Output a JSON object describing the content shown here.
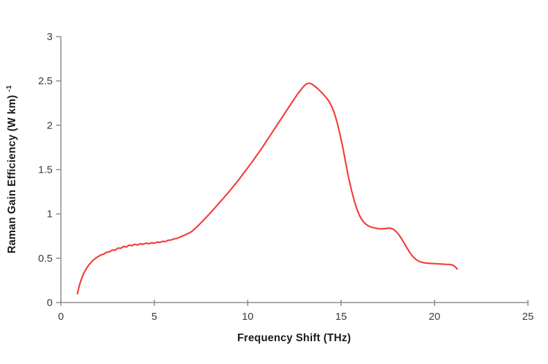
{
  "figure": {
    "background_color": "#ffffff"
  },
  "chart_data": {
    "type": "line",
    "title": "",
    "xlabel": "Frequency Shift (THz)",
    "ylabel": "Raman Gain Efficiency (W km)",
    "ylabel_exponent": "-1",
    "xlim": [
      0,
      25
    ],
    "ylim": [
      0,
      3
    ],
    "xticks": [
      0,
      5,
      10,
      15,
      20,
      25
    ],
    "xtick_labels": [
      "0",
      "5",
      "10",
      "15",
      "20",
      "25"
    ],
    "yticks": [
      0,
      0.5,
      1,
      1.5,
      2,
      2.5,
      3
    ],
    "ytick_labels": [
      "0",
      "0.5",
      "1",
      "1.5",
      "2",
      "2.5",
      "3"
    ],
    "grid": false,
    "legend": "none",
    "line_color": "#f43c36",
    "axis_color": "#8a8a8a",
    "tick_text_color": "#383838",
    "title_text_color": "#1a1a1a",
    "series": [
      {
        "name": "Raman gain efficiency",
        "x": [
          0.88,
          0.95,
          1.0,
          1.1,
          1.2,
          1.3,
          1.4,
          1.5,
          1.6,
          1.7,
          1.8,
          1.9,
          2.0,
          2.15,
          2.3,
          2.45,
          2.6,
          2.75,
          2.9,
          3.05,
          3.2,
          3.35,
          3.5,
          3.65,
          3.8,
          3.95,
          4.1,
          4.25,
          4.4,
          4.55,
          4.7,
          4.85,
          5.0,
          5.15,
          5.3,
          5.45,
          5.6,
          5.75,
          5.9,
          6.05,
          6.2,
          6.35,
          6.5,
          6.75,
          7.0,
          7.25,
          7.5,
          7.75,
          8.0,
          8.25,
          8.5,
          8.75,
          9.0,
          9.25,
          9.5,
          9.75,
          10.0,
          10.25,
          10.5,
          10.75,
          11.0,
          11.25,
          11.5,
          11.75,
          12.0,
          12.25,
          12.5,
          12.75,
          13.0,
          13.15,
          13.3,
          13.45,
          13.6,
          13.75,
          13.9,
          14.05,
          14.2,
          14.35,
          14.5,
          14.65,
          14.8,
          14.95,
          15.1,
          15.25,
          15.4,
          15.55,
          15.7,
          15.85,
          16.0,
          16.15,
          16.3,
          16.45,
          16.6,
          16.75,
          16.9,
          17.05,
          17.2,
          17.35,
          17.5,
          17.65,
          17.8,
          17.95,
          18.1,
          18.25,
          18.4,
          18.55,
          18.7,
          18.85,
          19.0,
          19.15,
          19.3,
          19.45,
          19.6,
          19.8,
          20.0,
          20.2,
          20.4,
          20.6,
          20.8,
          20.95,
          21.05,
          21.15,
          21.22
        ],
        "y": [
          0.1,
          0.16,
          0.2,
          0.265,
          0.32,
          0.36,
          0.395,
          0.425,
          0.45,
          0.472,
          0.49,
          0.506,
          0.52,
          0.538,
          0.547,
          0.568,
          0.571,
          0.592,
          0.59,
          0.614,
          0.612,
          0.632,
          0.627,
          0.647,
          0.641,
          0.657,
          0.649,
          0.662,
          0.657,
          0.67,
          0.662,
          0.674,
          0.669,
          0.682,
          0.678,
          0.69,
          0.688,
          0.703,
          0.705,
          0.718,
          0.722,
          0.736,
          0.75,
          0.772,
          0.8,
          0.848,
          0.9,
          0.955,
          1.01,
          1.07,
          1.13,
          1.19,
          1.25,
          1.315,
          1.38,
          1.45,
          1.52,
          1.59,
          1.665,
          1.74,
          1.82,
          1.9,
          1.98,
          2.06,
          2.14,
          2.22,
          2.3,
          2.375,
          2.44,
          2.468,
          2.475,
          2.462,
          2.438,
          2.412,
          2.382,
          2.348,
          2.312,
          2.272,
          2.21,
          2.13,
          2.02,
          1.89,
          1.74,
          1.57,
          1.41,
          1.27,
          1.15,
          1.05,
          0.975,
          0.923,
          0.888,
          0.866,
          0.852,
          0.843,
          0.837,
          0.833,
          0.832,
          0.834,
          0.838,
          0.84,
          0.826,
          0.8,
          0.764,
          0.714,
          0.66,
          0.606,
          0.556,
          0.516,
          0.487,
          0.467,
          0.455,
          0.448,
          0.444,
          0.441,
          0.439,
          0.436,
          0.433,
          0.431,
          0.43,
          0.424,
          0.412,
          0.394,
          0.378
        ]
      }
    ]
  }
}
